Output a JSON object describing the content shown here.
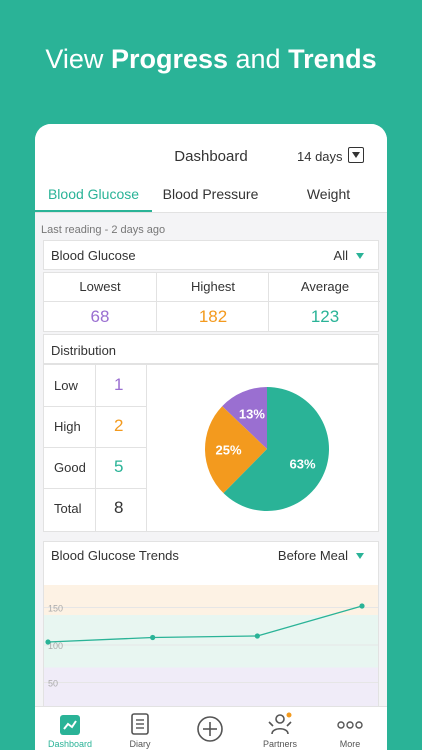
{
  "headline": {
    "part1": "View ",
    "bold1": "Progress",
    "part2": " and ",
    "bold2": "Trends"
  },
  "header": {
    "title": "Dashboard",
    "range": "14 days"
  },
  "tabs": [
    {
      "label": "Blood Glucose",
      "active": true
    },
    {
      "label": "Blood Pressure",
      "active": false
    },
    {
      "label": "Weight",
      "active": false
    }
  ],
  "last_reading": "Last reading - 2 days ago",
  "summary": {
    "title": "Blood Glucose",
    "filter": "All",
    "stats": [
      {
        "label": "Lowest",
        "value": "68",
        "color": "#9a6fd1"
      },
      {
        "label": "Highest",
        "value": "182",
        "color": "#f39a1e"
      },
      {
        "label": "Average",
        "value": "123",
        "color": "#2ab397"
      }
    ]
  },
  "distribution": {
    "title": "Distribution",
    "rows": [
      {
        "label": "Low",
        "value": "1",
        "color": "#9a6fd1"
      },
      {
        "label": "High",
        "value": "2",
        "color": "#f39a1e"
      },
      {
        "label": "Good",
        "value": "5",
        "color": "#2ab397"
      },
      {
        "label": "Total",
        "value": "8",
        "color": "#333333"
      }
    ],
    "pie": [
      {
        "label": "13%",
        "value": 13,
        "color": "#9a6fd1"
      },
      {
        "label": "25%",
        "value": 25,
        "color": "#f39a1e"
      },
      {
        "label": "63%",
        "value": 63,
        "color": "#2ab397"
      }
    ]
  },
  "trends": {
    "title": "Blood Glucose Trends",
    "filter": "Before Meal",
    "y_ticks": [
      "150",
      "100",
      "50"
    ],
    "ylim": [
      0,
      200
    ],
    "points": [
      104,
      110,
      112,
      152
    ]
  },
  "tabbar": [
    {
      "label": "Dashboard",
      "icon": "dashboard-icon",
      "active": true
    },
    {
      "label": "Diary",
      "icon": "diary-icon",
      "active": false
    },
    {
      "label": "",
      "icon": "add-icon",
      "active": false
    },
    {
      "label": "Partners",
      "icon": "partners-icon",
      "active": false
    },
    {
      "label": "More",
      "icon": "more-icon",
      "active": false
    }
  ],
  "accent": "#2ab397"
}
